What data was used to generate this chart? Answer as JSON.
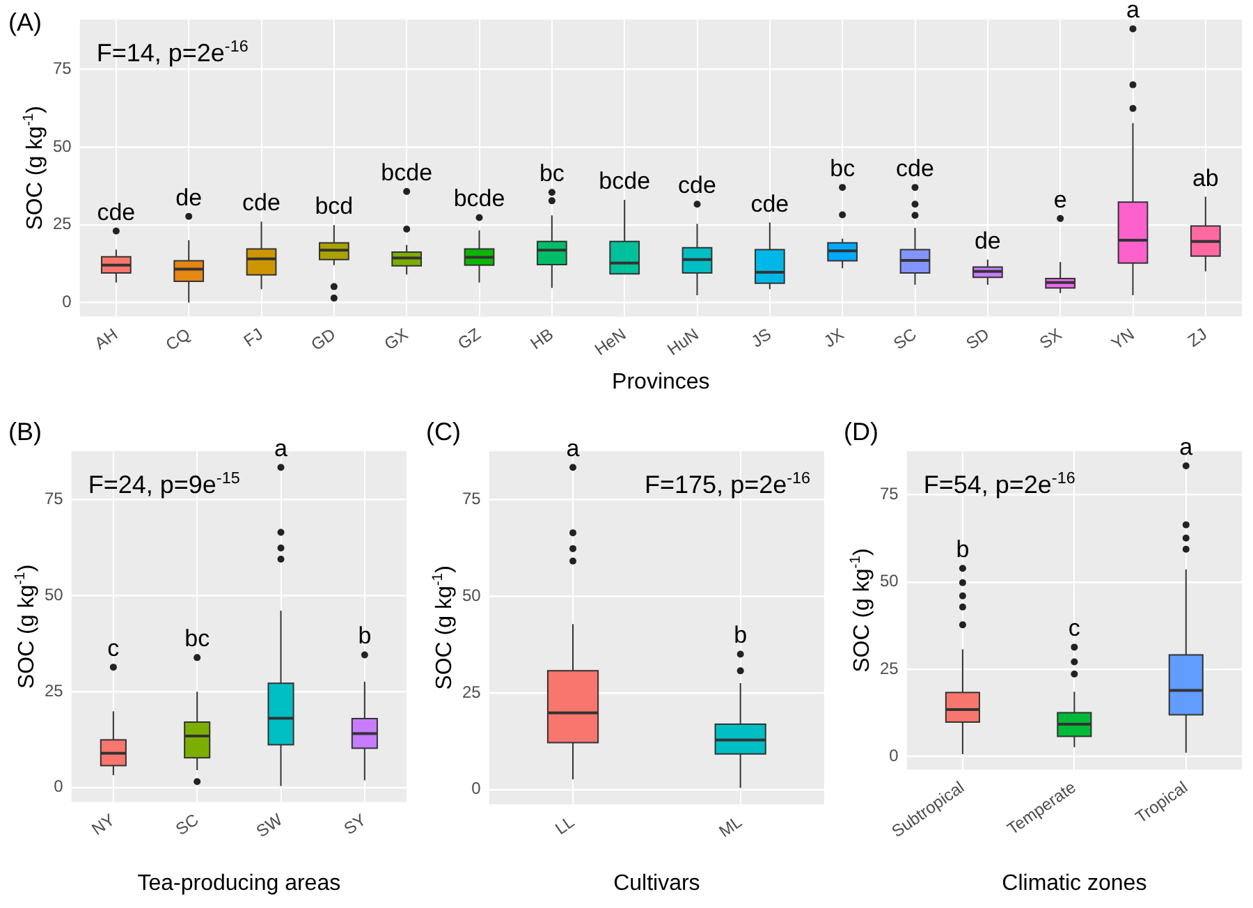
{
  "chart_data": [
    {
      "type": "box",
      "title": "(A)",
      "xlabel": "Provinces",
      "ylabel": "SOC (g kg$^{-1}$)",
      "grid": true,
      "ylim": [
        -4.5,
        91
      ],
      "yticks": [
        0,
        25,
        50,
        75
      ],
      "categories": [
        "AH",
        "CQ",
        "FJ",
        "GD",
        "GX",
        "GZ",
        "HB",
        "HeN",
        "HuN",
        "JS",
        "JX",
        "SC",
        "SD",
        "SX",
        "YN",
        "ZJ"
      ],
      "colors": [
        "#f8766d",
        "#e68613",
        "#cd9600",
        "#aba300",
        "#7cae00",
        "#0cb702",
        "#00be67",
        "#00c19a",
        "#00bfc4",
        "#00b8e7",
        "#00a9ff",
        "#8494ff",
        "#c77cff",
        "#ed68ed",
        "#ff61cc",
        "#ff68a1"
      ],
      "boxes": [
        {
          "low": 6.4,
          "q1": 9.5,
          "median": 12,
          "q3": 14.7,
          "high": 17,
          "outliers": [
            23
          ]
        },
        {
          "low": 0,
          "q1": 6.8,
          "median": 10.7,
          "q3": 13.4,
          "high": 20,
          "outliers": [
            27.7
          ]
        },
        {
          "low": 4.3,
          "q1": 8.9,
          "median": 14,
          "q3": 17.2,
          "high": 26
        },
        {
          "low": 12,
          "q1": 13.8,
          "median": 16.8,
          "q3": 19.2,
          "high": 24.9,
          "outliers": [
            5.1,
            1.4
          ]
        },
        {
          "low": 9,
          "q1": 11.8,
          "median": 14.3,
          "q3": 16.2,
          "high": 18.5,
          "outliers": [
            23.6,
            35.7
          ]
        },
        {
          "low": 6.4,
          "q1": 12,
          "median": 14.5,
          "q3": 17.2,
          "high": 23.2,
          "outliers": [
            27.3
          ]
        },
        {
          "low": 4.7,
          "q1": 12.2,
          "median": 16.8,
          "q3": 19.6,
          "high": 28,
          "outliers": [
            32.7,
            35.4
          ]
        },
        {
          "low": 9.2,
          "q1": 9.2,
          "median": 12.7,
          "q3": 19.6,
          "high": 33
        },
        {
          "low": 2.3,
          "q1": 9.5,
          "median": 13.8,
          "q3": 17.6,
          "high": 25.3,
          "outliers": [
            31.6
          ]
        },
        {
          "low": 4.3,
          "q1": 6.2,
          "median": 9.7,
          "q3": 17,
          "high": 25.7
        },
        {
          "low": 11,
          "q1": 13.4,
          "median": 16.6,
          "q3": 19.2,
          "high": 20.5,
          "outliers": [
            28.2,
            37
          ]
        },
        {
          "low": 5.7,
          "q1": 9.5,
          "median": 13.5,
          "q3": 17,
          "high": 24,
          "outliers": [
            28,
            31.6,
            37
          ]
        },
        {
          "low": 5.7,
          "q1": 8.1,
          "median": 10,
          "q3": 11.4,
          "high": 13.8
        },
        {
          "low": 3,
          "q1": 4.7,
          "median": 6.4,
          "q3": 7.7,
          "high": 13,
          "outliers": [
            27
          ]
        },
        {
          "low": 2.3,
          "q1": 12.7,
          "median": 20,
          "q3": 32.3,
          "high": 57.7,
          "outliers": [
            62.4,
            70,
            88
          ]
        },
        {
          "low": 10,
          "q1": 14.9,
          "median": 19.6,
          "q3": 24.6,
          "high": 34
        }
      ],
      "annotations": [
        "F=14, p=2e$^{-16}$",
        "cde",
        "de",
        "cde",
        "bcd",
        "bcde",
        "bcde",
        "bc",
        "bcde",
        "cde",
        "cde",
        "bc",
        "cde",
        "de",
        "e",
        "a",
        "ab"
      ]
    },
    {
      "type": "box",
      "title": "(B)",
      "xlabel": "Tea-producing areas",
      "ylabel": "SOC (g kg$^{-1}$)",
      "grid": true,
      "ylim": [
        -3.8,
        87.5
      ],
      "yticks": [
        0,
        25,
        50,
        75
      ],
      "categories": [
        "NY",
        "SC",
        "SW",
        "SY"
      ],
      "colors": [
        "#f8766d",
        "#7cae00",
        "#00bfc4",
        "#c77cff"
      ],
      "boxes": [
        {
          "low": 3.2,
          "q1": 5.7,
          "median": 8.9,
          "q3": 12.4,
          "high": 19.8,
          "outliers": [
            31.3
          ]
        },
        {
          "low": 4.5,
          "q1": 7.7,
          "median": 13.4,
          "q3": 17,
          "high": 24.9,
          "outliers": [
            33.8,
            1.5
          ]
        },
        {
          "low": 0.4,
          "q1": 11.1,
          "median": 18,
          "q3": 27.1,
          "high": 46,
          "outliers": [
            59.4,
            62.3,
            66.4,
            83.3
          ]
        },
        {
          "low": 1.9,
          "q1": 10.2,
          "median": 14,
          "q3": 17.9,
          "high": 27.5,
          "outliers": [
            34.5
          ]
        }
      ],
      "annotations": [
        "F=24, p=9e$^{-15}$",
        "c",
        "bc",
        "a",
        "b"
      ]
    },
    {
      "type": "box",
      "title": "(C)",
      "xlabel": "Cultivars",
      "ylabel": "SOC (g kg$^{-1}$)",
      "grid": true,
      "ylim": [
        -3.8,
        87.5
      ],
      "yticks": [
        0,
        25,
        50,
        75
      ],
      "categories": [
        "LL",
        "ML"
      ],
      "colors": [
        "#f8766d",
        "#00bfc4"
      ],
      "boxes": [
        {
          "low": 2.6,
          "q1": 12.1,
          "median": 19.8,
          "q3": 30.7,
          "high": 42.8,
          "outliers": [
            59.1,
            62.3,
            66.4,
            83.3
          ]
        },
        {
          "low": 0.4,
          "q1": 9.2,
          "median": 12.8,
          "q3": 16.9,
          "high": 27.5,
          "outliers": [
            30.7,
            35
          ]
        }
      ],
      "annotations": [
        "F=175, p=2e$^{-16}$",
        "a",
        "b"
      ]
    },
    {
      "type": "box",
      "title": "(D)",
      "xlabel": "Climatic zones",
      "ylabel": "SOC (g kg$^{-1}$)",
      "grid": true,
      "ylim": [
        -3.8,
        87.5
      ],
      "yticks": [
        0,
        25,
        50,
        75
      ],
      "categories": [
        "Subtropical",
        "Temperate",
        "Tropical"
      ],
      "colors": [
        "#f8766d",
        "#00ba38",
        "#619cff"
      ],
      "boxes": [
        {
          "low": 0.6,
          "q1": 9.8,
          "median": 13.4,
          "q3": 18.3,
          "high": 30.7,
          "outliers": [
            37.7,
            42.8,
            46,
            49.8,
            53.9
          ]
        },
        {
          "low": 2.6,
          "q1": 5.7,
          "median": 9.2,
          "q3": 12.5,
          "high": 18.5,
          "outliers": [
            23.6,
            27.1,
            31.3
          ]
        },
        {
          "low": 1,
          "q1": 11.9,
          "median": 18.9,
          "q3": 29.1,
          "high": 53.6,
          "outliers": [
            59.4,
            62.6,
            66.4,
            83.3
          ]
        }
      ],
      "annotations": [
        "F=54, p=2e$^{-16}$",
        "b",
        "c",
        "a"
      ]
    }
  ]
}
